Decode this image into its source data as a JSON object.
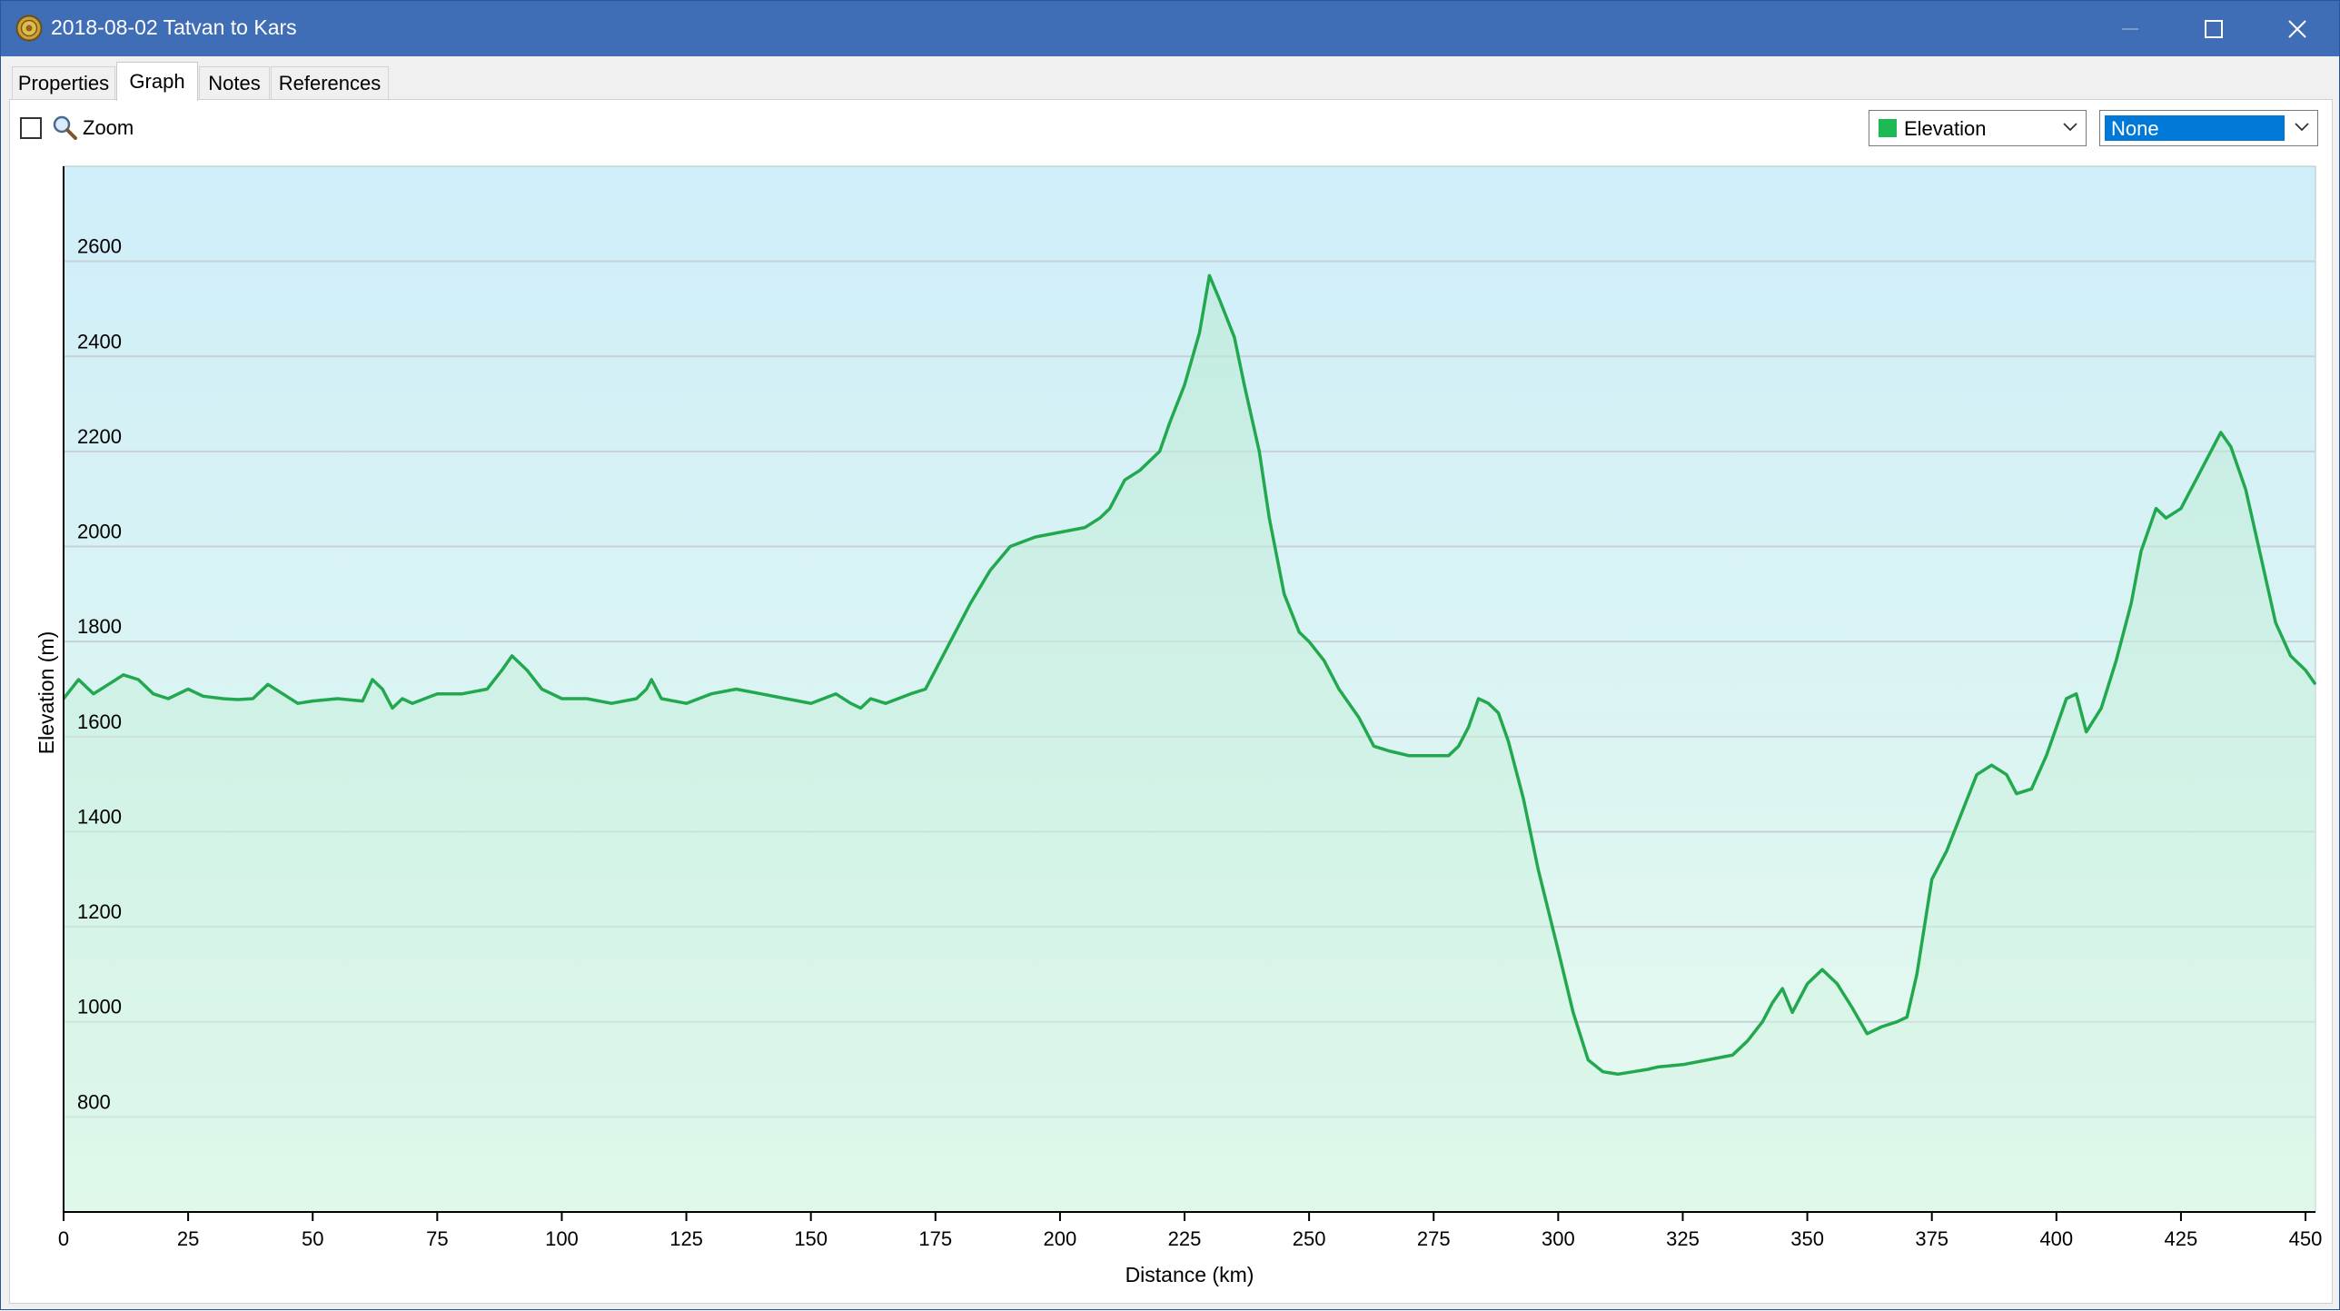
{
  "window": {
    "title": "2018-08-02 Tatvan to Kars",
    "icon": "medal-icon"
  },
  "tabs": [
    {
      "label": "Properties",
      "active": false
    },
    {
      "label": "Graph",
      "active": true
    },
    {
      "label": "Notes",
      "active": false
    },
    {
      "label": "References",
      "active": false
    }
  ],
  "toolbar": {
    "zoom_label": "Zoom",
    "zoom_checked": false,
    "series_select": {
      "value": "Elevation",
      "swatch_color": "#1db954"
    },
    "second_select": {
      "value": "None"
    }
  },
  "colors": {
    "line": "#22a84e",
    "bg_top": "#cfeef9",
    "bg_bottom": "#e6faee",
    "grid": "#c8d2d6"
  },
  "chart_data": {
    "type": "area",
    "xlabel": "Distance  (km)",
    "ylabel": "Elevation (m)",
    "xlim": [
      0,
      452
    ],
    "ylim": [
      600,
      2800
    ],
    "xticks": [
      0,
      25,
      50,
      75,
      100,
      125,
      150,
      175,
      200,
      225,
      250,
      275,
      300,
      325,
      350,
      375,
      400,
      425,
      450
    ],
    "yticks": [
      800,
      1000,
      1200,
      1400,
      1600,
      1800,
      2000,
      2200,
      2400,
      2600
    ],
    "grid": true,
    "series": [
      {
        "x": [
          0,
          3,
          6,
          9,
          12,
          15,
          18,
          21,
          25,
          28,
          32,
          35,
          38,
          41,
          44,
          47,
          50,
          55,
          60,
          62,
          64,
          66,
          68,
          70,
          75,
          80,
          85,
          88,
          90,
          93,
          96,
          98,
          100,
          105,
          110,
          115,
          117,
          118,
          120,
          125,
          130,
          135,
          140,
          145,
          150,
          155,
          158,
          160,
          162,
          165,
          170,
          173,
          175,
          178,
          182,
          186,
          190,
          195,
          200,
          205,
          208,
          210,
          213,
          216,
          220,
          222,
          225,
          228,
          230,
          232,
          235,
          237,
          240,
          242,
          245,
          248,
          250,
          253,
          256,
          260,
          263,
          266,
          270,
          274,
          278,
          280,
          282,
          284,
          286,
          288,
          290,
          293,
          296,
          300,
          303,
          306,
          309,
          312,
          315,
          318,
          320,
          325,
          330,
          335,
          338,
          341,
          343,
          345,
          347,
          350,
          353,
          356,
          359,
          362,
          365,
          368,
          370,
          372,
          375,
          378,
          381,
          384,
          387,
          390,
          392,
          395,
          398,
          400,
          402,
          404,
          406,
          409,
          412,
          415,
          417,
          420,
          422,
          425,
          428,
          431,
          433,
          435,
          438,
          441,
          444,
          447,
          450,
          452
        ],
        "values": [
          1680,
          1720,
          1690,
          1710,
          1730,
          1720,
          1690,
          1680,
          1700,
          1685,
          1680,
          1678,
          1680,
          1710,
          1690,
          1670,
          1675,
          1680,
          1675,
          1720,
          1700,
          1660,
          1680,
          1670,
          1690,
          1690,
          1700,
          1740,
          1770,
          1740,
          1700,
          1690,
          1680,
          1680,
          1670,
          1680,
          1700,
          1720,
          1680,
          1670,
          1690,
          1700,
          1690,
          1680,
          1670,
          1690,
          1670,
          1660,
          1680,
          1670,
          1690,
          1700,
          1740,
          1800,
          1880,
          1950,
          2000,
          2020,
          2030,
          2040,
          2060,
          2080,
          2140,
          2160,
          2200,
          2260,
          2340,
          2450,
          2570,
          2520,
          2440,
          2340,
          2200,
          2060,
          1900,
          1820,
          1800,
          1760,
          1700,
          1640,
          1580,
          1570,
          1560,
          1560,
          1560,
          1580,
          1620,
          1680,
          1670,
          1650,
          1590,
          1470,
          1320,
          1150,
          1020,
          920,
          895,
          890,
          895,
          900,
          905,
          910,
          920,
          930,
          960,
          1000,
          1040,
          1070,
          1020,
          1080,
          1110,
          1080,
          1030,
          975,
          990,
          1000,
          1010,
          1100,
          1300,
          1360,
          1440,
          1520,
          1540,
          1520,
          1480,
          1490,
          1560,
          1620,
          1680,
          1690,
          1610,
          1660,
          1760,
          1880,
          1990,
          2080,
          2060,
          2080,
          2140,
          2200,
          2240,
          2210,
          2120,
          1980,
          1840,
          1770,
          1740,
          1710
        ]
      }
    ]
  }
}
